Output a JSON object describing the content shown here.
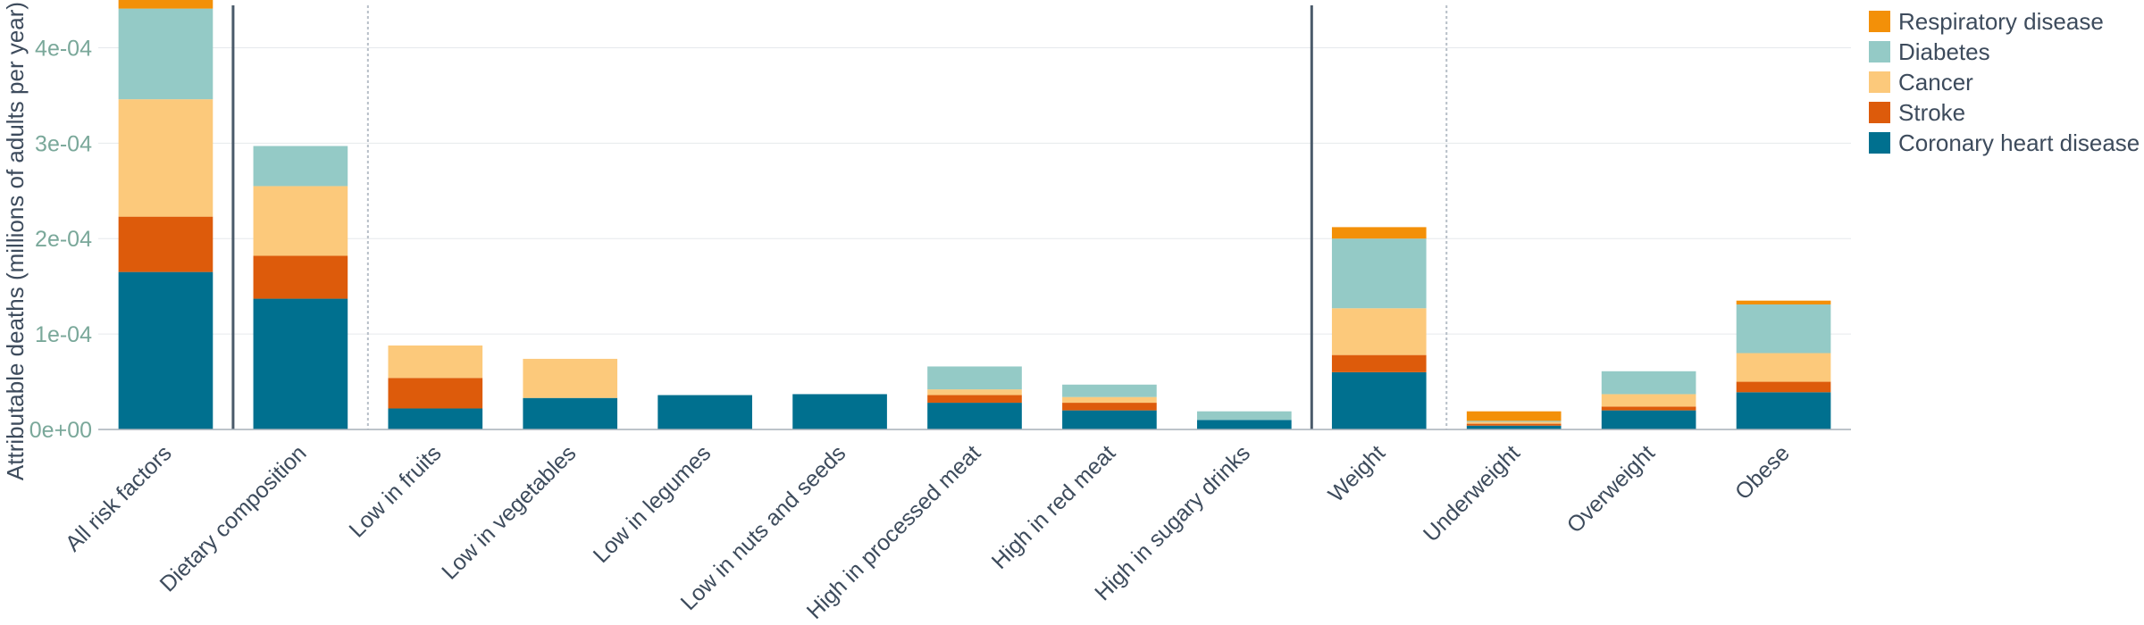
{
  "chart_data": {
    "type": "bar",
    "stacked": true,
    "title": "",
    "xlabel": "",
    "ylabel": "Attributable deaths (millions of adults per year)",
    "ylim": [
      0,
      0.00045
    ],
    "yticks": [
      0,
      0.0001,
      0.0002,
      0.0003,
      0.0004
    ],
    "ytick_labels": [
      "0e+00",
      "1e-04",
      "2e-04",
      "3e-04",
      "4e-04"
    ],
    "grid": "horizontal",
    "legend_position": "top-right",
    "categories": [
      "All risk factors",
      "Dietary composition",
      "Low in fruits",
      "Low in vegetables",
      "Low in legumes",
      "Low in nuts and seeds",
      "High in processed meat",
      "High in red meat",
      "High in sugary drinks",
      "Weight",
      "Underweight",
      "Overweight",
      "Obese"
    ],
    "separators": [
      {
        "after": 0,
        "style": "solid"
      },
      {
        "after": 1,
        "style": "dotted"
      },
      {
        "after": 8,
        "style": "solid"
      },
      {
        "after": 9,
        "style": "dotted"
      }
    ],
    "series": [
      {
        "name": "Coronary heart disease",
        "color": "#00708f",
        "values": [
          0.000165,
          0.000137,
          2.2e-05,
          3.3e-05,
          3.6e-05,
          3.7e-05,
          2.8e-05,
          2e-05,
          1e-05,
          6e-05,
          4e-06,
          2e-05,
          3.9e-05
        ]
      },
      {
        "name": "Stroke",
        "color": "#dd5b0b",
        "values": [
          5.8e-05,
          4.5e-05,
          3.2e-05,
          0.0,
          0.0,
          0.0,
          8e-06,
          8e-06,
          0.0,
          1.8e-05,
          2e-06,
          4e-06,
          1.1e-05
        ]
      },
      {
        "name": "Cancer",
        "color": "#fcc97b",
        "values": [
          0.000123,
          7.3e-05,
          3.4e-05,
          4.1e-05,
          0.0,
          0.0,
          6e-06,
          6e-06,
          0.0,
          4.9e-05,
          2e-06,
          1.3e-05,
          3e-05
        ]
      },
      {
        "name": "Diabetes",
        "color": "#94cac6",
        "values": [
          9.5e-05,
          4.2e-05,
          0.0,
          0.0,
          0.0,
          0.0,
          2.4e-05,
          1.3e-05,
          9e-06,
          7.3e-05,
          1e-06,
          2.4e-05,
          5.1e-05
        ]
      },
      {
        "name": "Respiratory disease",
        "color": "#f39008",
        "values": [
          1.2e-05,
          0.0,
          0.0,
          0.0,
          0.0,
          0.0,
          0.0,
          0.0,
          0.0,
          1.2e-05,
          1e-05,
          0.0,
          4e-06
        ]
      }
    ],
    "legend_order": [
      "Respiratory disease",
      "Diabetes",
      "Cancer",
      "Stroke",
      "Coronary heart disease"
    ]
  }
}
